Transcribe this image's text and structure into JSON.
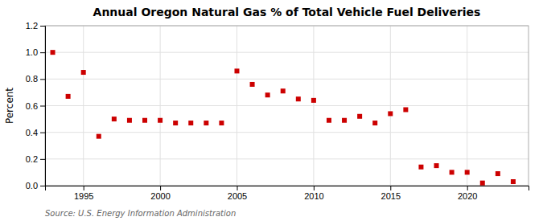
{
  "chart_data": {
    "type": "scatter",
    "title": "Annual Oregon Natural Gas % of Total Vehicle Fuel Deliveries",
    "ylabel": "Percent",
    "source": "Source: U.S. Energy Information Administration",
    "x": [
      1993,
      1994,
      1995,
      1996,
      1997,
      1998,
      1999,
      2000,
      2001,
      2002,
      2003,
      2004,
      2005,
      2006,
      2007,
      2008,
      2009,
      2010,
      2011,
      2012,
      2013,
      2014,
      2015,
      2016,
      2017,
      2018,
      2019,
      2020,
      2021,
      2022,
      2023
    ],
    "values": [
      1.0,
      0.67,
      0.85,
      0.37,
      0.5,
      0.49,
      0.49,
      0.49,
      0.47,
      0.47,
      0.47,
      0.47,
      0.86,
      0.76,
      0.68,
      0.71,
      0.65,
      0.64,
      0.49,
      0.49,
      0.52,
      0.47,
      0.54,
      0.57,
      0.14,
      0.15,
      0.1,
      0.1,
      0.02,
      0.09,
      0.03
    ],
    "color": "#cc0000",
    "marker": "square",
    "xlim": [
      1992.5,
      2024
    ],
    "ylim": [
      0.0,
      1.2
    ],
    "xticks": [
      1995,
      2000,
      2005,
      2010,
      2015,
      2020
    ],
    "yticks": [
      {
        "value": 0.0,
        "label": "0.0"
      },
      0.2,
      0.4,
      0.6,
      0.8,
      {
        "value": 1.0,
        "label": "1.0"
      },
      1.2
    ],
    "grid": true
  }
}
